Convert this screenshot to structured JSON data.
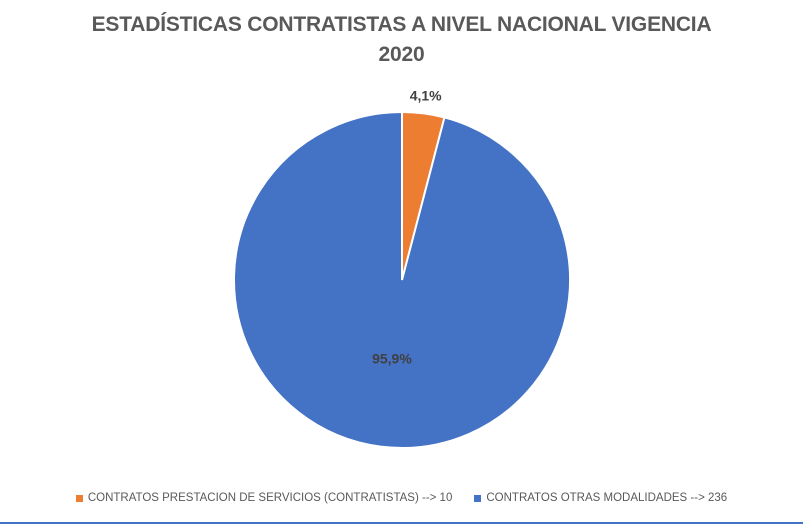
{
  "chart_data": {
    "type": "pie",
    "title_lines": [
      "ESTADÍSTICAS CONTRATISTAS A NIVEL NACIONAL VIGENCIA",
      "2020"
    ],
    "slices": [
      {
        "label": "CONTRATOS PRESTACION DE SERVICIOS (CONTRATISTAS) --> 10",
        "value": 10,
        "percent_label": "4,1%",
        "color": "#ED7D31"
      },
      {
        "label": "CONTRATOS OTRAS MODALIDADES --> 236",
        "value": 236,
        "percent_label": "95,9%",
        "color": "#4472C4"
      }
    ],
    "legend_position": "bottom"
  }
}
